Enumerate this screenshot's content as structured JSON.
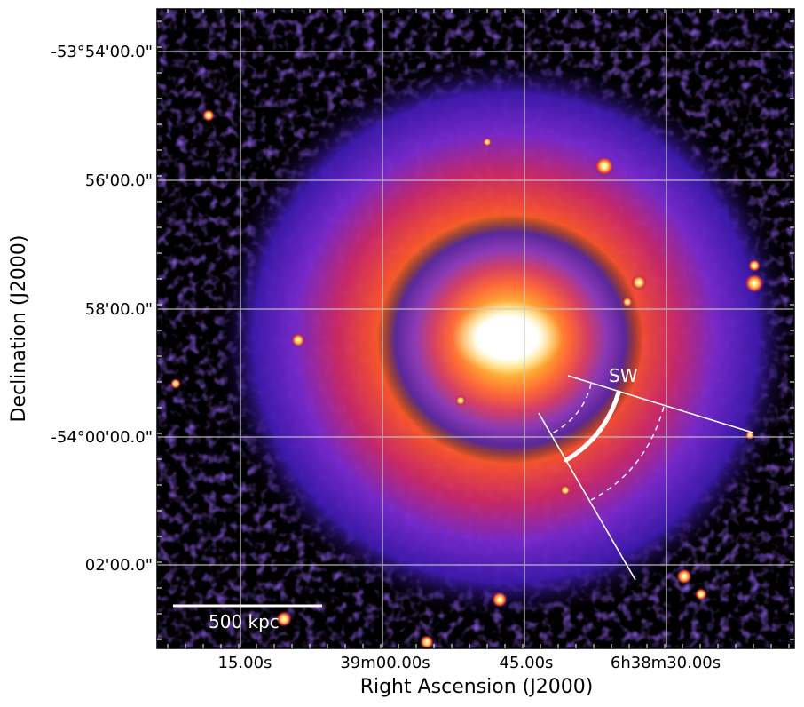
{
  "figure": {
    "axes": {
      "xlabel": "Right Ascension (J2000)",
      "ylabel": "Declination (J2000)",
      "x_ticks": [
        "15.00s",
        "39m00.00s",
        "45.00s",
        "6h38m30.00s"
      ],
      "y_ticks": [
        "-53°54'00.0\"",
        "56'00.0\"",
        "58'00.0\"",
        "-54°00'00.0\"",
        "02'00.0\""
      ],
      "grid": true
    },
    "annotations": {
      "sector_label": "SW",
      "scale_bar_label": "500 kpc"
    },
    "colors": {
      "colormap": "gnuplot-like (black → purple → red → orange → yellow → white)",
      "overlay": "#ffffff",
      "grid": "#c8c8c8"
    }
  }
}
